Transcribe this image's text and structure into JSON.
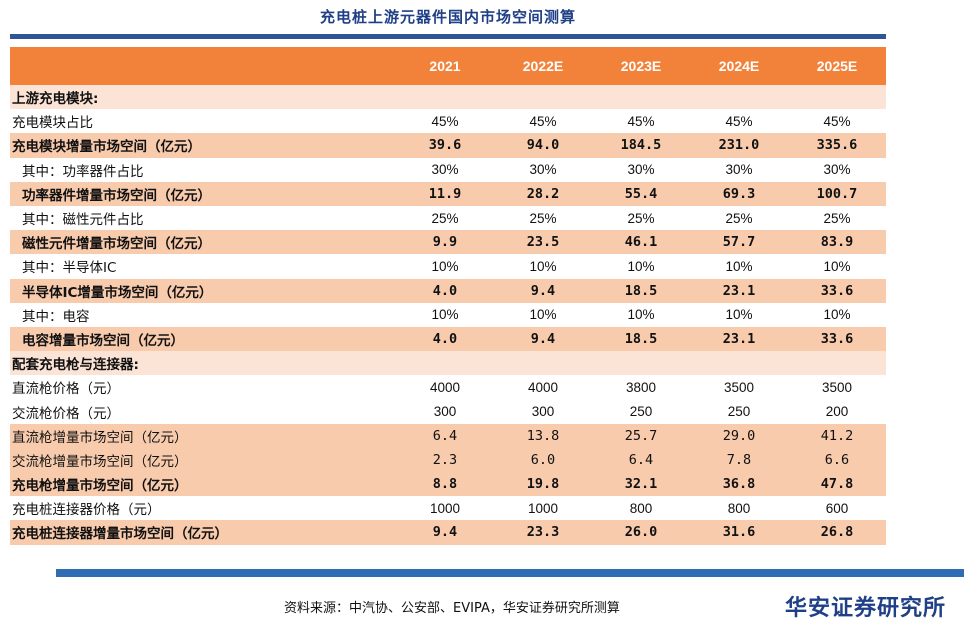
{
  "title": "充电桩上游元器件国内市场空间测算",
  "header": {
    "label": "",
    "years": [
      "2021",
      "2022E",
      "2023E",
      "2024E",
      "2025E"
    ]
  },
  "rows": [
    {
      "label": "上游充电模块:",
      "values": [
        "",
        "",
        "",
        "",
        ""
      ]
    },
    {
      "label": "充电模块占比",
      "values": [
        "45%",
        "45%",
        "45%",
        "45%",
        "45%"
      ]
    },
    {
      "label": "充电模块增量市场空间（亿元）",
      "values": [
        "39.6",
        "94.0",
        "184.5",
        "231.0",
        "335.6"
      ]
    },
    {
      "label": "其中：功率器件占比",
      "values": [
        "30%",
        "30%",
        "30%",
        "30%",
        "30%"
      ]
    },
    {
      "label": "功率器件增量市场空间（亿元）",
      "values": [
        "11.9",
        "28.2",
        "55.4",
        "69.3",
        "100.7"
      ]
    },
    {
      "label": "其中：磁性元件占比",
      "values": [
        "25%",
        "25%",
        "25%",
        "25%",
        "25%"
      ]
    },
    {
      "label": "磁性元件增量市场空间（亿元）",
      "values": [
        "9.9",
        "23.5",
        "46.1",
        "57.7",
        "83.9"
      ]
    },
    {
      "label": "其中：半导体IC",
      "values": [
        "10%",
        "10%",
        "10%",
        "10%",
        "10%"
      ]
    },
    {
      "label": "半导体IC增量市场空间（亿元）",
      "values": [
        "4.0",
        "9.4",
        "18.5",
        "23.1",
        "33.6"
      ]
    },
    {
      "label": "其中：电容",
      "values": [
        "10%",
        "10%",
        "10%",
        "10%",
        "10%"
      ]
    },
    {
      "label": "电容增量市场空间（亿元）",
      "values": [
        "4.0",
        "9.4",
        "18.5",
        "23.1",
        "33.6"
      ]
    },
    {
      "label": "配套充电枪与连接器:",
      "values": [
        "",
        "",
        "",
        "",
        ""
      ]
    },
    {
      "label": "直流枪价格（元）",
      "values": [
        "4000",
        "4000",
        "3800",
        "3500",
        "3500"
      ]
    },
    {
      "label": "交流枪价格（元）",
      "values": [
        "300",
        "300",
        "250",
        "250",
        "200"
      ]
    },
    {
      "label": "直流枪增量市场空间（亿元）",
      "values": [
        "6.4",
        "13.8",
        "25.7",
        "29.0",
        "41.2"
      ]
    },
    {
      "label": "交流枪增量市场空间（亿元）",
      "values": [
        "2.3",
        "6.0",
        "6.4",
        "7.8",
        "6.6"
      ]
    },
    {
      "label": "充电枪增量市场空间（亿元）",
      "values": [
        "8.8",
        "19.8",
        "32.1",
        "36.8",
        "47.8"
      ]
    },
    {
      "label": "充电桩连接器价格（元）",
      "values": [
        "1000",
        "1000",
        "800",
        "800",
        "600"
      ]
    },
    {
      "label": "充电桩连接器增量市场空间（亿元）",
      "values": [
        "9.4",
        "23.3",
        "26.0",
        "31.6",
        "26.8"
      ]
    }
  ],
  "source": "资料来源：中汽协、公安部、EVIPA，华安证券研究所测算",
  "brand": "华安证券研究所",
  "colors": {
    "header": "#f2823a",
    "highlight": "#f8cbad",
    "section": "#fbe3d6",
    "rule": "#2f5597",
    "title": "#1f3f86"
  }
}
